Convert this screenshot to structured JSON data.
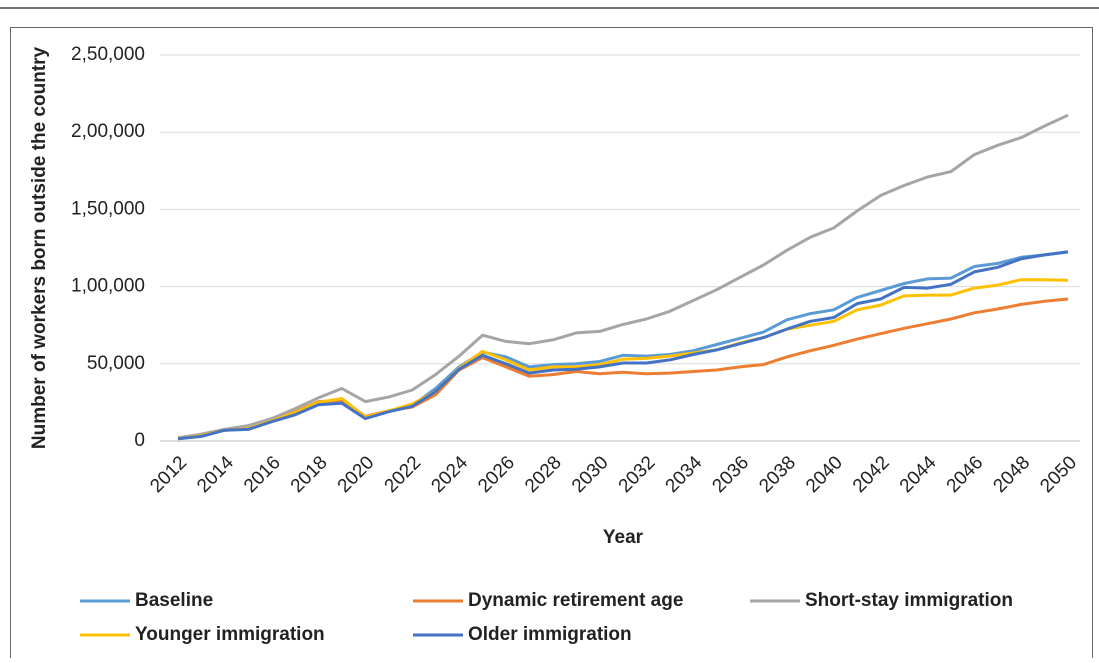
{
  "chart_data": {
    "type": "line",
    "x_label": "Year",
    "y_label": "Number of workers born outside the country",
    "x": [
      2012,
      2013,
      2014,
      2015,
      2016,
      2017,
      2018,
      2019,
      2020,
      2021,
      2022,
      2023,
      2024,
      2025,
      2026,
      2027,
      2028,
      2029,
      2030,
      2031,
      2032,
      2033,
      2034,
      2035,
      2036,
      2037,
      2038,
      2039,
      2040,
      2041,
      2042,
      2043,
      2044,
      2045,
      2046,
      2047,
      2048,
      2049,
      2050
    ],
    "xlim": [
      2012,
      2050
    ],
    "xticks": [
      2012,
      2014,
      2016,
      2018,
      2020,
      2022,
      2024,
      2026,
      2028,
      2030,
      2032,
      2034,
      2036,
      2038,
      2040,
      2042,
      2044,
      2046,
      2048,
      2050
    ],
    "ylim": [
      0,
      250000
    ],
    "yticks": [
      0,
      {
        "value": 50000,
        "label": "50,000"
      },
      {
        "value": 100000,
        "label": "1,00,000"
      },
      {
        "value": 150000,
        "label": "1,50,000"
      },
      {
        "value": 200000,
        "label": "2,00,000"
      },
      {
        "value": 250000,
        "label": "2,50,000"
      }
    ],
    "grid": true,
    "legend": "bottom",
    "series": [
      {
        "name": "Baseline",
        "color": "#5b9bd5",
        "values": [
          1500,
          3500,
          7000,
          8000,
          13000,
          18000,
          24500,
          25500,
          15000,
          19500,
          23000,
          34000,
          48000,
          57500,
          54500,
          48000,
          49500,
          50000,
          51500,
          55500,
          55000,
          56000,
          58500,
          62500,
          66500,
          70500,
          78500,
          82500,
          85000,
          93000,
          97500,
          102000,
          105000,
          105500,
          113000,
          115000,
          119000,
          120500,
          122500
        ]
      },
      {
        "name": "Dynamic retirement age",
        "color": "#ed7d31",
        "values": [
          1500,
          3500,
          7000,
          8000,
          13000,
          19000,
          25500,
          26500,
          16000,
          19500,
          22000,
          30000,
          46000,
          54000,
          48000,
          42000,
          43000,
          45000,
          43500,
          44500,
          43500,
          44000,
          45000,
          46000,
          48000,
          49500,
          54500,
          58500,
          62000,
          66000,
          69500,
          73000,
          76000,
          79000,
          83000,
          85500,
          88500,
          90500,
          92000
        ]
      },
      {
        "name": "Short-stay immigration",
        "color": "#a5a5a5",
        "values": [
          2000,
          4500,
          7500,
          10000,
          14500,
          21000,
          28000,
          34000,
          25500,
          28500,
          33000,
          43000,
          55000,
          68500,
          64500,
          63000,
          65500,
          70000,
          71000,
          75500,
          79000,
          84000,
          91000,
          98000,
          106000,
          114000,
          123500,
          132000,
          138000,
          149000,
          159000,
          165500,
          171000,
          174500,
          185500,
          191500,
          196500,
          204000,
          211000
        ]
      },
      {
        "name": "Younger immigration",
        "color": "#ffc000",
        "values": [
          1500,
          3500,
          7000,
          8000,
          13000,
          18500,
          25000,
          27500,
          15500,
          19500,
          24000,
          32000,
          47000,
          58000,
          52500,
          46000,
          48000,
          48000,
          49500,
          53000,
          53500,
          55000,
          57000,
          59000,
          63500,
          67000,
          72500,
          75000,
          77500,
          85000,
          88000,
          94000,
          94500,
          94500,
          99000,
          101000,
          104500,
          104500,
          104000
        ]
      },
      {
        "name": "Older immigration",
        "color": "#4472c4",
        "values": [
          1500,
          3000,
          7000,
          7500,
          12500,
          17000,
          23500,
          24500,
          14500,
          19000,
          22500,
          32000,
          46500,
          55500,
          50000,
          44000,
          46000,
          46500,
          48000,
          50500,
          50500,
          52500,
          56000,
          59000,
          63000,
          67000,
          72500,
          77500,
          80000,
          89000,
          92000,
          99500,
          99000,
          101500,
          109500,
          112500,
          118000,
          120500,
          122500
        ]
      }
    ]
  }
}
